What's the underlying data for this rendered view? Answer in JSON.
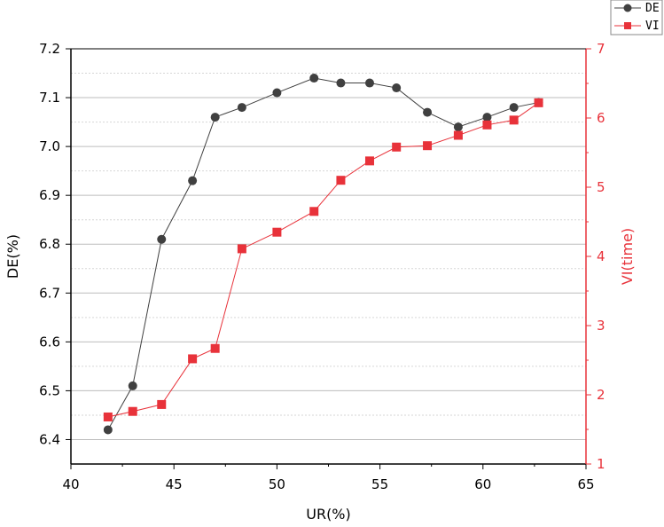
{
  "chart_data": {
    "type": "line",
    "xlabel": "UR(%)",
    "ylabel_left": "DE(%)",
    "ylabel_right": "VI(time)",
    "xlim": [
      40,
      65
    ],
    "ylim_left": [
      6.35,
      7.2
    ],
    "ylim_right": [
      1,
      7
    ],
    "xticks": [
      "40",
      "45",
      "50",
      "55",
      "60",
      "65"
    ],
    "yticks_left": [
      "6.4",
      "6.5",
      "6.6",
      "6.7",
      "6.8",
      "6.9",
      "7.0",
      "7.1",
      "7.2"
    ],
    "yticks_right": [
      "1",
      "2",
      "3",
      "4",
      "5",
      "6",
      "7"
    ],
    "grid": true,
    "legend_position": "top-right",
    "series": [
      {
        "name": "DE",
        "axis": "left",
        "marker": "circle",
        "color": "#404040",
        "x": [
          41.8,
          43.0,
          44.4,
          45.9,
          47.0,
          48.3,
          50.0,
          51.8,
          53.1,
          54.5,
          55.8,
          57.3,
          58.8,
          60.2,
          61.5,
          62.7
        ],
        "y": [
          6.42,
          6.51,
          6.81,
          6.93,
          7.06,
          7.08,
          7.11,
          7.14,
          7.13,
          7.13,
          7.12,
          7.07,
          7.04,
          7.06,
          7.08,
          7.09
        ]
      },
      {
        "name": "VI",
        "axis": "right",
        "marker": "square",
        "color": "#e8323a",
        "x": [
          41.8,
          43.0,
          44.4,
          45.9,
          47.0,
          48.3,
          50.0,
          51.8,
          53.1,
          54.5,
          55.8,
          57.3,
          58.8,
          60.2,
          61.5,
          62.7
        ],
        "y": [
          1.68,
          1.76,
          1.86,
          2.52,
          2.67,
          4.11,
          4.35,
          4.65,
          5.1,
          5.38,
          5.58,
          5.6,
          5.75,
          5.9,
          5.97,
          6.22
        ]
      }
    ]
  }
}
